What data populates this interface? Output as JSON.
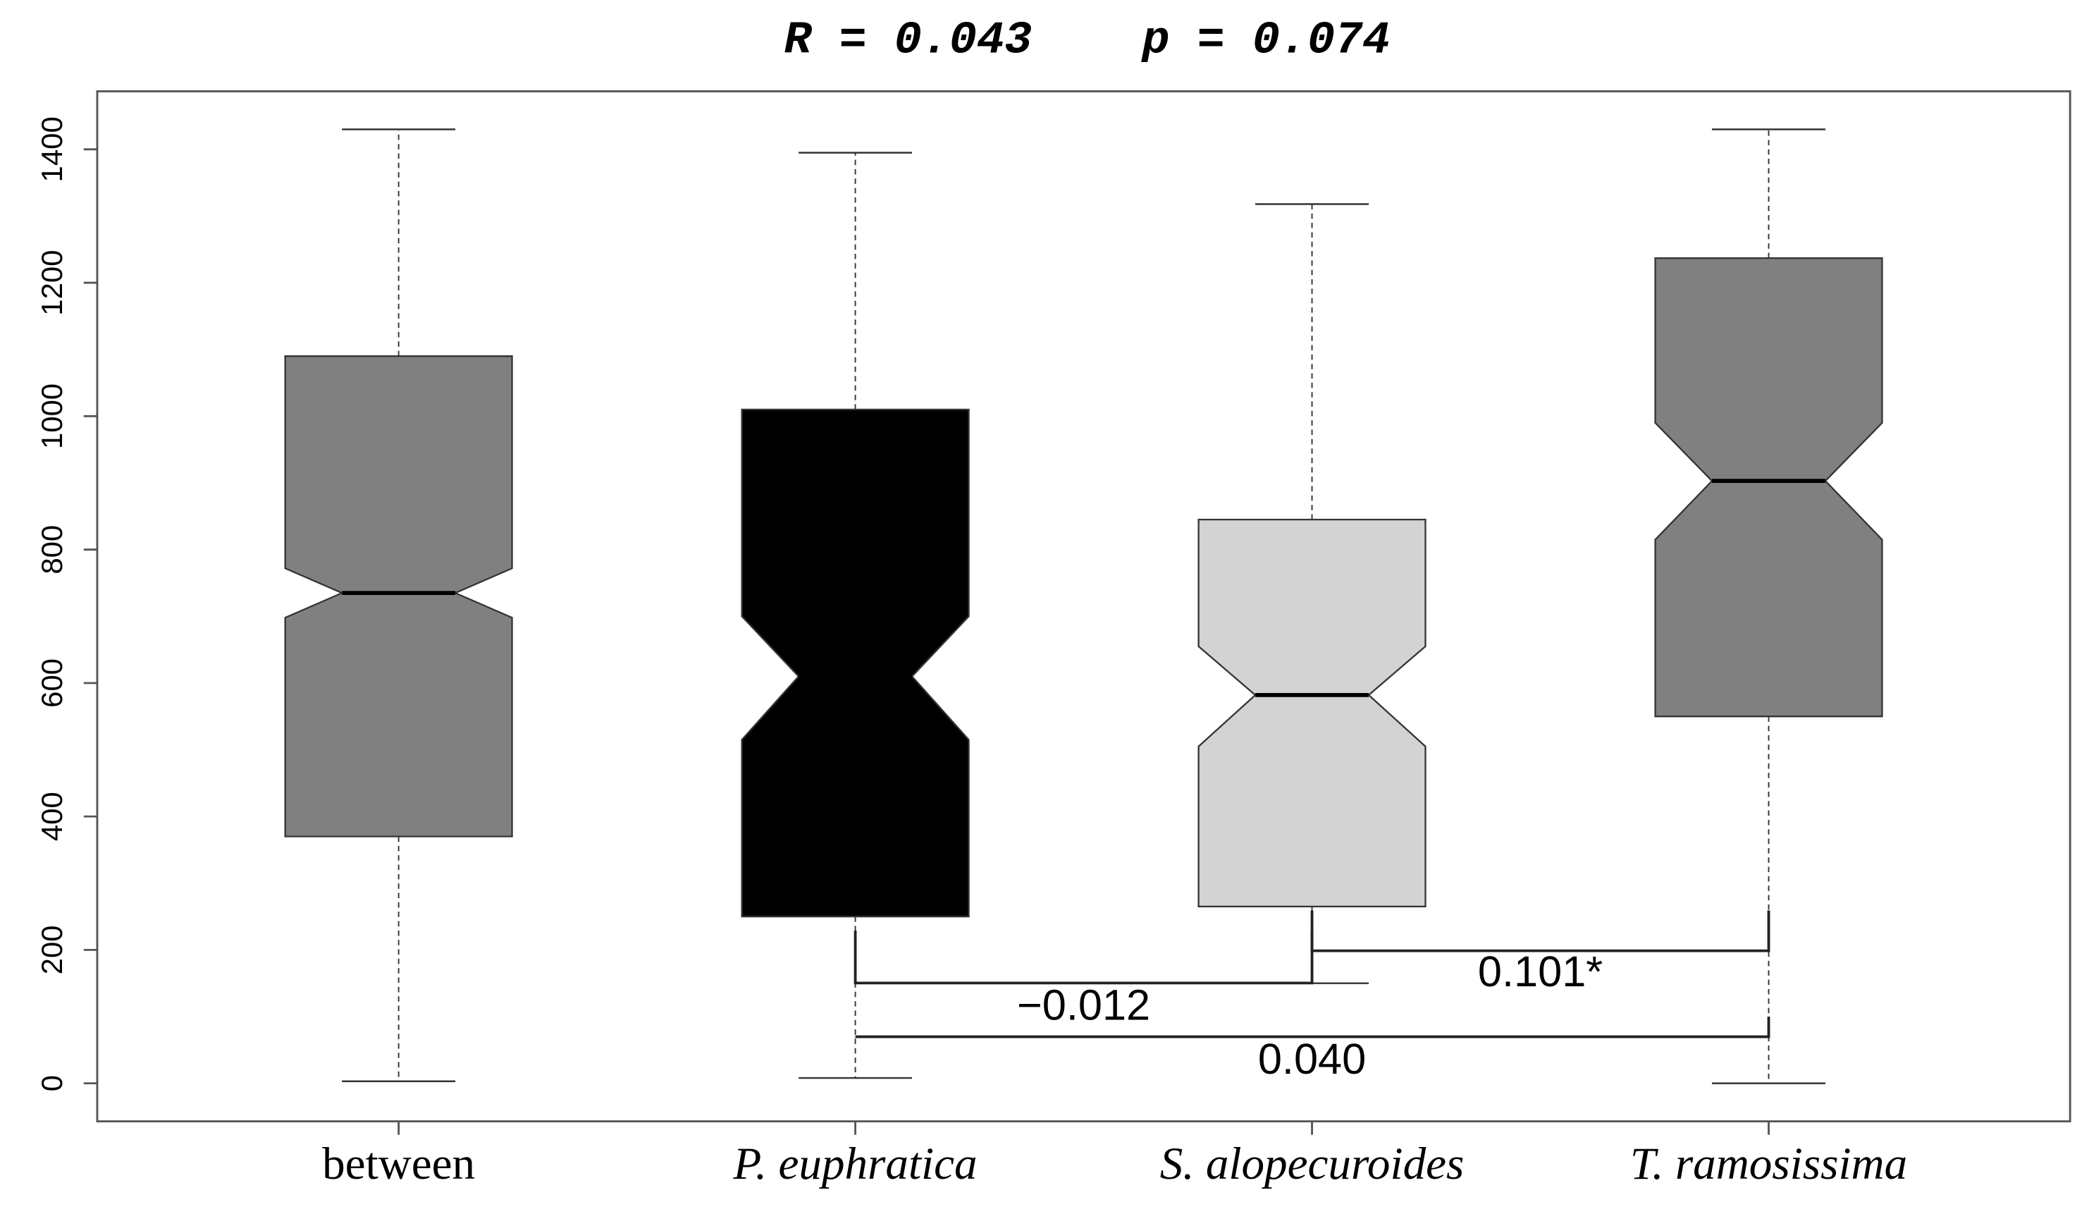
{
  "chart_data": {
    "type": "boxplot",
    "title": "R = 0.043    p = 0.074",
    "categories": [
      "between",
      "P. euphratica",
      "S. alopecuroides",
      "T. ramosissima"
    ],
    "italic_labels": [
      false,
      true,
      true,
      true
    ],
    "series": [
      {
        "name": "between",
        "color": "#808080",
        "whislo": 3,
        "q1": 370,
        "notch_lo": 698,
        "median": 735,
        "notch_hi": 772,
        "q3": 1090,
        "whishi": 1430
      },
      {
        "name": "P. euphratica",
        "color": "#000000",
        "whislo": 8,
        "q1": 250,
        "notch_lo": 515,
        "median": 610,
        "notch_hi": 700,
        "q3": 1010,
        "whishi": 1395
      },
      {
        "name": "S. alopecuroides",
        "color": "#d3d3d3",
        "whislo": 150,
        "q1": 265,
        "notch_lo": 505,
        "median": 582,
        "notch_hi": 655,
        "q3": 845,
        "whishi": 1318
      },
      {
        "name": "T. ramosissima",
        "color": "#808080",
        "whislo": 0,
        "q1": 550,
        "notch_lo": 815,
        "median": 903,
        "notch_hi": 990,
        "q3": 1237,
        "whishi": 1430
      }
    ],
    "ylim": [
      -57,
      1487
    ],
    "yticks": [
      0,
      200,
      400,
      600,
      800,
      1000,
      1200,
      1400
    ],
    "comparisons": [
      {
        "from": 1,
        "to": 2,
        "label": "−0.012"
      },
      {
        "from": 2,
        "to": 3,
        "label": "0.101*"
      },
      {
        "from": 1,
        "to": 3,
        "label": "0.040"
      }
    ]
  }
}
